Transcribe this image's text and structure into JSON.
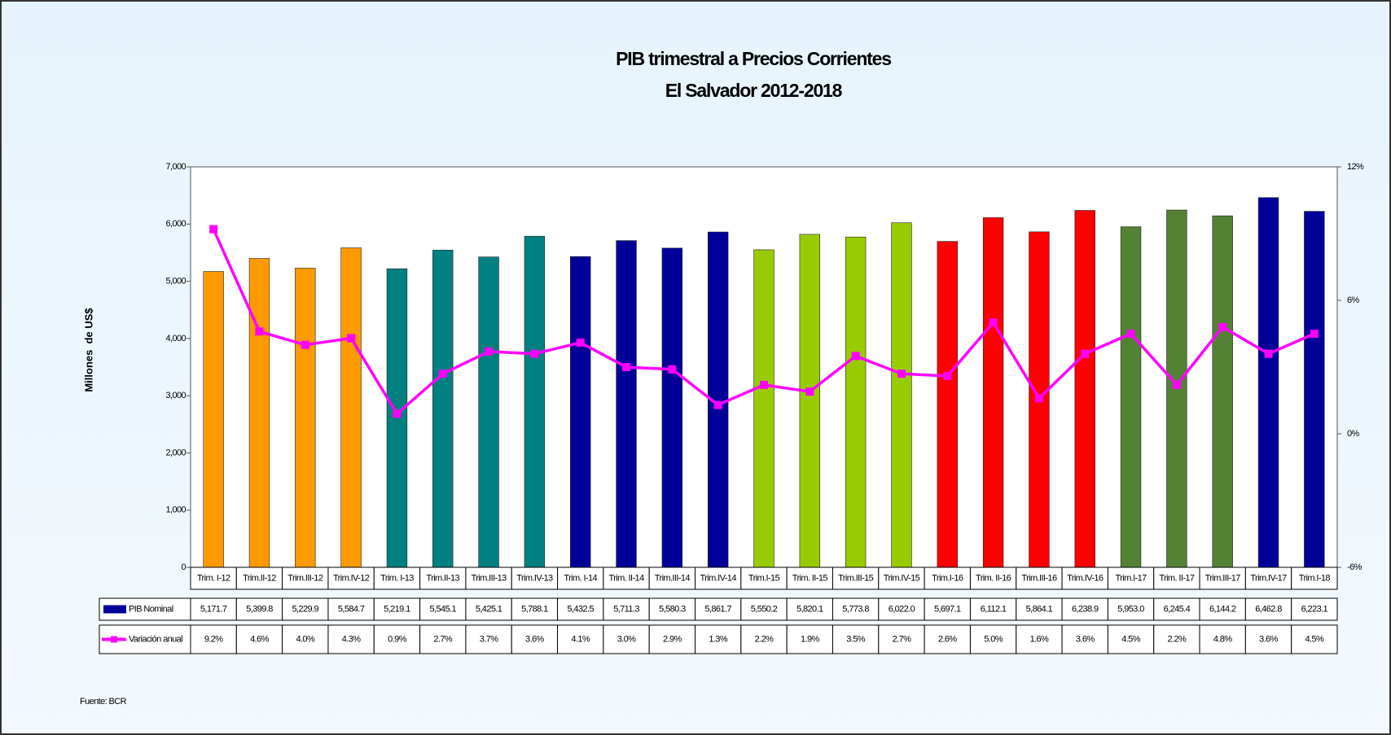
{
  "chart_data": {
    "type": "bar_line",
    "title": "PIB trimestral a Precios Corrientes",
    "subtitle": "El Salvador 2012-2018",
    "y_label": "Millones  de US$",
    "source": "Fuente: BCR",
    "categories": [
      "Trim. I-12",
      "Trim.II-12",
      "Trim.III-12",
      "Trim.IV-12",
      "Trim. I-13",
      "Trim.II-13",
      "Trim.III-13",
      "Trim.IV-13",
      "Trim. I-14",
      "Trim. II-14",
      "Trim.III-14",
      "Trim.IV-14",
      "Trim.I-15",
      "Trim. II-15",
      "Trim.III-15",
      "Trim.IV-15",
      "Trim.I-16",
      "Trim. II-16",
      "Trim.III-16",
      "Trim.IV-16",
      "Trim.I-17",
      "Trim. II-17",
      "Trim.III-17",
      "Trim.IV-17",
      "Trim.I-18"
    ],
    "series": [
      {
        "name": "PIB Nominal",
        "color": "#000099",
        "colors": [
          "#FF9900",
          "#FF9900",
          "#FF9900",
          "#FF9900",
          "#008080",
          "#008080",
          "#008080",
          "#008080",
          "#000099",
          "#000099",
          "#000099",
          "#000099",
          "#99CC00",
          "#99CC00",
          "#99CC00",
          "#99CC00",
          "#FF0000",
          "#FF0000",
          "#FF0000",
          "#FF0000",
          "#548235",
          "#548235",
          "#548235",
          "#000099",
          "#000099"
        ],
        "values": [
          5171.7,
          5399.8,
          5229.9,
          5584.7,
          5219.1,
          5545.1,
          5425.1,
          5788.1,
          5432.5,
          5711.3,
          5580.3,
          5861.7,
          5550.2,
          5820.1,
          5773.8,
          6022.0,
          5697.1,
          6112.1,
          5864.1,
          6238.9,
          5953.0,
          6245.4,
          6144.2,
          6462.8,
          6223.1
        ],
        "value_labels": [
          "5,171.7",
          "5,399.8",
          "5,229.9",
          "5,584.7",
          "5,219.1",
          "5,545.1",
          "5,425.1",
          "5,788.1",
          "5,432.5",
          "5,711.3",
          "5,580.3",
          "5,861.7",
          "5,550.2",
          "5,820.1",
          "5,773.8",
          "6,022.0",
          "5,697.1",
          "6,112.1",
          "5,864.1",
          "6,238.9",
          "5,953.0",
          "6,245.4",
          "6,144.2",
          "6,462.8",
          "6,223.1"
        ]
      },
      {
        "name": "Variación anual",
        "color": "#FF00FF",
        "axis": "y2",
        "values": [
          9.2,
          4.6,
          4.0,
          4.3,
          0.9,
          2.7,
          3.7,
          3.6,
          4.1,
          3.0,
          2.9,
          1.3,
          2.2,
          1.9,
          3.5,
          2.7,
          2.6,
          5.0,
          1.6,
          3.6,
          4.5,
          2.2,
          4.8,
          3.6,
          4.5
        ],
        "value_labels": [
          "9.2%",
          "4.6%",
          "4.0%",
          "4.3%",
          "0.9%",
          "2.7%",
          "3.7%",
          "3.6%",
          "4.1%",
          "3.0%",
          "2.9%",
          "1.3%",
          "2.2%",
          "1.9%",
          "3.5%",
          "2.7%",
          "2.6%",
          "5.0%",
          "1.6%",
          "3.6%",
          "4.5%",
          "2.2%",
          "4.8%",
          "3.6%",
          "4.5%"
        ]
      }
    ],
    "ylim": [
      0,
      7000
    ],
    "yticks": [
      {
        "value": 0,
        "label": "0"
      },
      {
        "value": 1000,
        "label": "1,000"
      },
      {
        "value": 2000,
        "label": "2,000"
      },
      {
        "value": 3000,
        "label": "3,000"
      },
      {
        "value": 4000,
        "label": "4,000"
      },
      {
        "value": 5000,
        "label": "5,000"
      },
      {
        "value": 6000,
        "label": "6,000"
      },
      {
        "value": 7000,
        "label": "7,000"
      }
    ],
    "y2lim": [
      -6,
      12
    ],
    "y2ticks": [
      {
        "value": -6,
        "label": "-6%"
      },
      {
        "value": 0,
        "label": "0%"
      },
      {
        "value": 6,
        "label": "6%"
      },
      {
        "value": 12,
        "label": "12%"
      }
    ]
  }
}
